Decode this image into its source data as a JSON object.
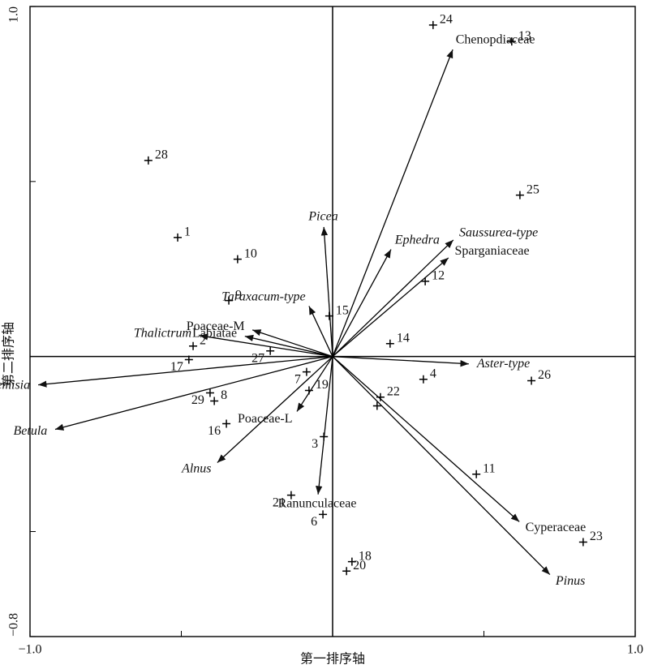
{
  "chart_data": {
    "type": "biplot",
    "x_label": "第一排序轴",
    "y_label": "第二排序轴",
    "xlim": [
      -1.0,
      1.0
    ],
    "ylim": [
      -0.8,
      1.0
    ],
    "xticks": [
      {
        "value": -1.0,
        "label": "−1.0"
      },
      {
        "value": -0.5,
        "label": null
      },
      {
        "value": 0.5,
        "label": null
      },
      {
        "value": 1.0,
        "label": "1.0"
      }
    ],
    "yticks": [
      {
        "value": -0.8,
        "label": "−0.8"
      },
      {
        "value": -0.5,
        "label": null
      },
      {
        "value": 0.5,
        "label": null
      },
      {
        "value": 1.0,
        "label": "1.0"
      }
    ],
    "color": "#000000",
    "samples": {
      "labels": [
        "24",
        "13",
        "28",
        "25",
        "1",
        "10",
        "12",
        "9",
        "15",
        "14",
        "2",
        "27",
        "17",
        "7",
        "4",
        "26",
        "22",
        null,
        "19",
        "29",
        "8",
        "16",
        "3",
        "11",
        "21",
        "6",
        "23",
        "18",
        "20"
      ],
      "x": [
        0.332,
        0.592,
        -0.609,
        0.619,
        -0.512,
        -0.314,
        0.306,
        -0.343,
        -0.011,
        0.19,
        -0.461,
        -0.206,
        -0.475,
        -0.086,
        0.3,
        0.657,
        0.158,
        0.147,
        -0.078,
        -0.405,
        -0.391,
        -0.351,
        -0.029,
        0.475,
        -0.137,
        -0.032,
        0.828,
        0.064,
        0.046
      ],
      "y": [
        0.947,
        0.9,
        0.56,
        0.461,
        0.34,
        0.278,
        0.215,
        0.16,
        0.116,
        0.037,
        0.03,
        0.016,
        -0.009,
        -0.044,
        -0.065,
        -0.069,
        -0.116,
        -0.141,
        -0.097,
        -0.104,
        -0.127,
        -0.192,
        -0.229,
        -0.336,
        -0.396,
        -0.451,
        -0.53,
        -0.586,
        -0.613
      ]
    },
    "species": {
      "names": [
        "Chenopdiaceae",
        "Ephedra",
        "Saussurea-type",
        "Sparganiaceae",
        "Aster-type",
        "Cyperaceae",
        "Pinus",
        "Ranunculaceae",
        "Poaceae-L",
        "Alnus",
        "Betula",
        "Artemisia",
        "Thalictrum",
        "Labiatae",
        "Poaceae-M",
        "Taraxacum-type",
        "Picea"
      ],
      "x": [
        0.397,
        0.193,
        0.399,
        0.383,
        0.45,
        0.617,
        0.718,
        -0.048,
        -0.118,
        -0.381,
        -0.917,
        -0.973,
        -0.44,
        -0.29,
        -0.265,
        -0.078,
        -0.029
      ],
      "y": [
        0.877,
        0.306,
        0.333,
        0.282,
        -0.021,
        -0.472,
        -0.623,
        -0.394,
        -0.157,
        -0.303,
        -0.208,
        -0.081,
        0.06,
        0.058,
        0.076,
        0.144,
        0.37
      ],
      "italic": [
        false,
        true,
        true,
        false,
        true,
        false,
        true,
        false,
        false,
        true,
        true,
        true,
        true,
        false,
        false,
        true,
        true
      ]
    }
  }
}
